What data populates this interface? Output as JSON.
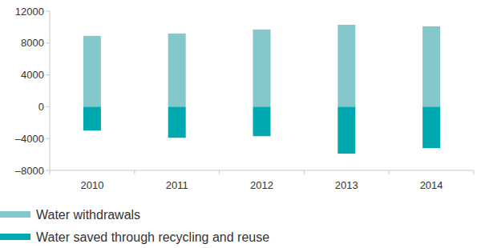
{
  "chart_data": {
    "type": "bar",
    "stacked": true,
    "grid": false,
    "legend": "bottom-left",
    "categories": [
      "2010",
      "2011",
      "2012",
      "2013",
      "2014"
    ],
    "series": [
      {
        "name": "Water withdrawals",
        "color": "#86c7cc",
        "values": [
          8900,
          9200,
          9700,
          10300,
          10100
        ]
      },
      {
        "name": "Water saved through recycling and reuse",
        "color": "#00a9b0",
        "values": [
          -3000,
          -3900,
          -3700,
          -5900,
          -5200
        ]
      }
    ],
    "ylim": [
      -8000,
      12000
    ],
    "yticks": [
      {
        "value": -8000,
        "label": "–8000"
      },
      {
        "value": -4000,
        "label": "–4000"
      },
      0,
      4000,
      8000,
      12000
    ]
  }
}
